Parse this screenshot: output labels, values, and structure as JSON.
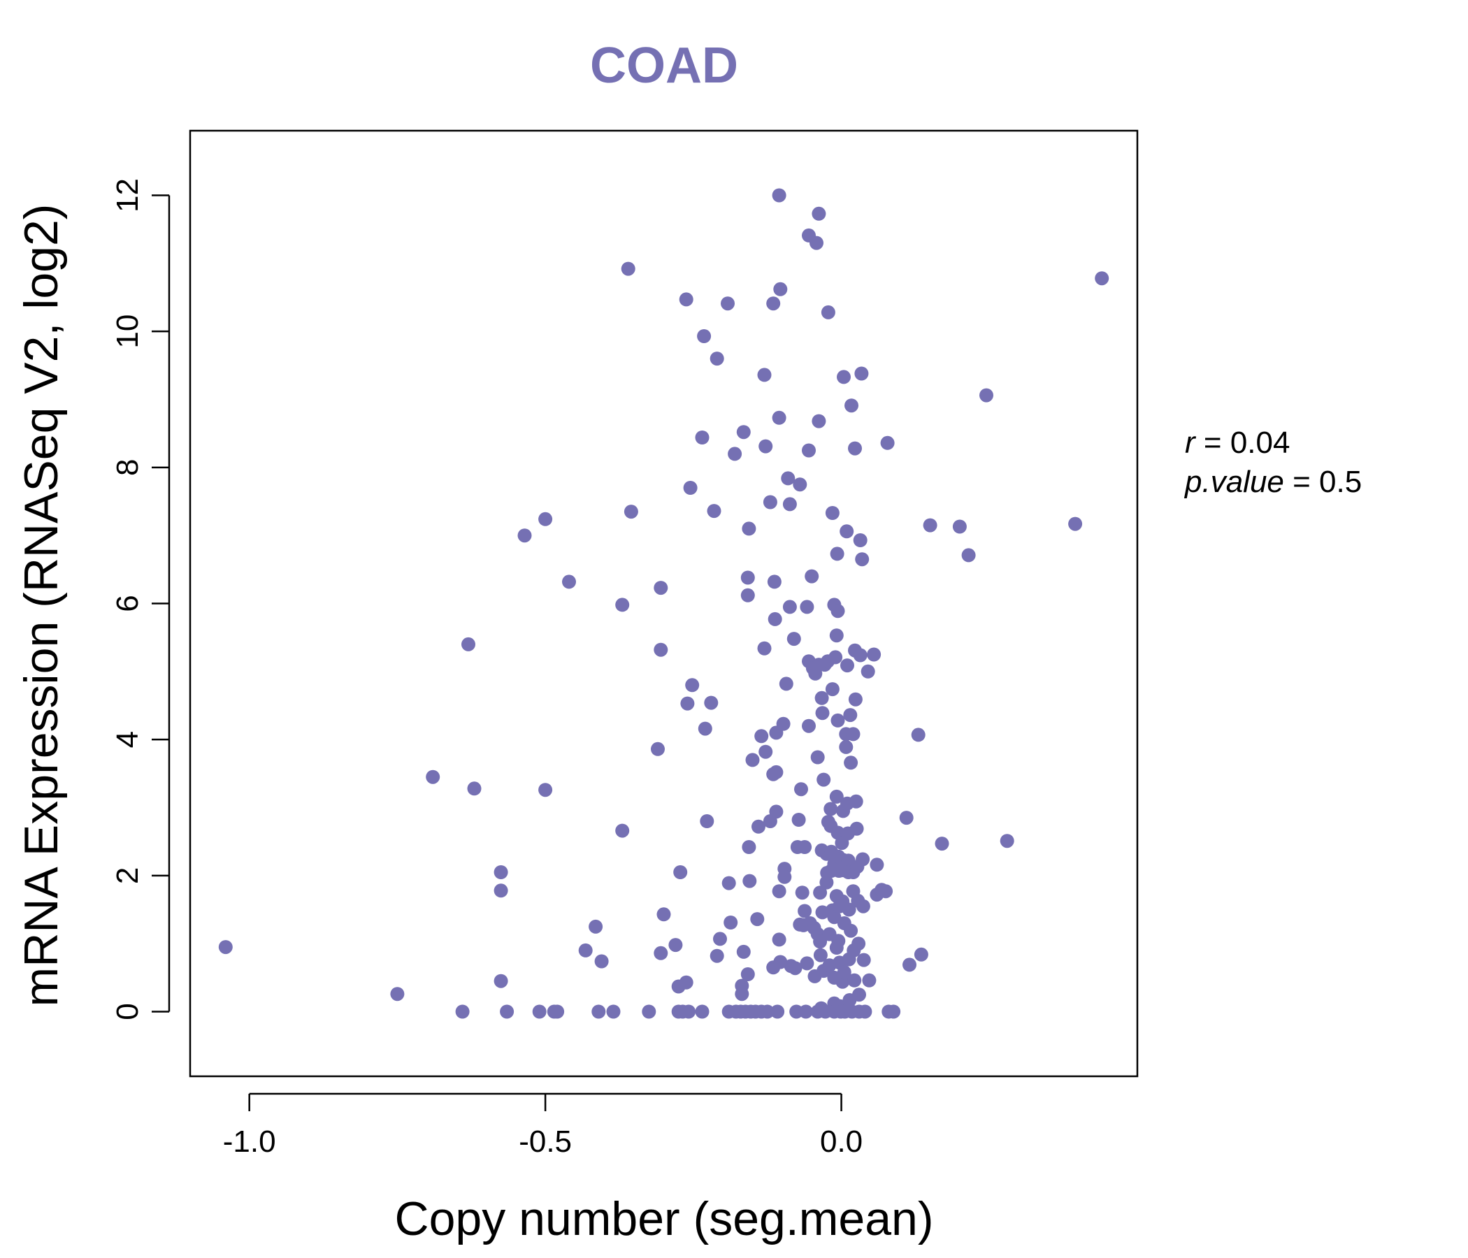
{
  "chart_data": {
    "type": "scatter",
    "title": "COAD",
    "xlabel": "Copy number (seg.mean)",
    "ylabel": "mRNA Expression (RNASeq V2, log2)",
    "xlim": [
      -1.1,
      0.5
    ],
    "ylim": [
      -0.95,
      12.95
    ],
    "x_ticks": [
      -1.0,
      -0.5,
      0.0
    ],
    "x_tick_labels": [
      "-1.0",
      "-0.5",
      "0.0"
    ],
    "y_ticks": [
      0,
      2,
      4,
      6,
      8,
      10,
      12
    ],
    "y_tick_labels": [
      "0",
      "2",
      "4",
      "6",
      "8",
      "10",
      "12"
    ],
    "point_color": "#7570b3",
    "annotations": {
      "r_label": "r",
      "r_value": "0.04",
      "p_label": "p.value",
      "p_value": "0.5"
    },
    "series": [
      {
        "name": "samples",
        "points": [
          [
            -1.04,
            0.95
          ],
          [
            -0.75,
            0.26
          ],
          [
            -0.69,
            3.45
          ],
          [
            -0.64,
            0.0
          ],
          [
            -0.63,
            5.4
          ],
          [
            -0.62,
            3.28
          ],
          [
            -0.575,
            2.05
          ],
          [
            -0.575,
            1.78
          ],
          [
            -0.575,
            0.45
          ],
          [
            -0.565,
            0.0
          ],
          [
            -0.535,
            7.0
          ],
          [
            -0.51,
            0.0
          ],
          [
            -0.5,
            7.24
          ],
          [
            -0.5,
            3.26
          ],
          [
            -0.485,
            0.0
          ],
          [
            -0.48,
            0.0
          ],
          [
            -0.46,
            6.32
          ],
          [
            -0.432,
            0.9
          ],
          [
            -0.415,
            1.25
          ],
          [
            -0.41,
            0.0
          ],
          [
            -0.405,
            0.74
          ],
          [
            -0.385,
            0.0
          ],
          [
            -0.37,
            5.98
          ],
          [
            -0.37,
            2.66
          ],
          [
            -0.36,
            10.92
          ],
          [
            -0.355,
            7.35
          ],
          [
            -0.325,
            0.0
          ],
          [
            -0.31,
            3.86
          ],
          [
            -0.305,
            6.23
          ],
          [
            -0.305,
            5.32
          ],
          [
            -0.305,
            0.86
          ],
          [
            -0.3,
            1.43
          ],
          [
            -0.28,
            0.98
          ],
          [
            -0.275,
            0.37
          ],
          [
            -0.275,
            0.0
          ],
          [
            -0.272,
            2.05
          ],
          [
            -0.268,
            0.0
          ],
          [
            -0.262,
            10.47
          ],
          [
            -0.262,
            0.43
          ],
          [
            -0.26,
            4.53
          ],
          [
            -0.258,
            0.0
          ],
          [
            -0.255,
            7.7
          ],
          [
            -0.252,
            4.8
          ],
          [
            -0.235,
            8.44
          ],
          [
            -0.235,
            0.0
          ],
          [
            -0.232,
            9.93
          ],
          [
            -0.23,
            4.16
          ],
          [
            -0.227,
            2.8
          ],
          [
            -0.22,
            4.54
          ],
          [
            -0.215,
            7.36
          ],
          [
            -0.21,
            9.6
          ],
          [
            -0.21,
            0.82
          ],
          [
            -0.205,
            1.07
          ],
          [
            -0.192,
            10.41
          ],
          [
            -0.19,
            1.89
          ],
          [
            -0.19,
            0.0
          ],
          [
            -0.187,
            1.31
          ],
          [
            -0.18,
            8.2
          ],
          [
            -0.178,
            0.0
          ],
          [
            -0.17,
            0.0
          ],
          [
            -0.168,
            0.38
          ],
          [
            -0.168,
            0.26
          ],
          [
            -0.165,
            8.52
          ],
          [
            -0.165,
            0.88
          ],
          [
            -0.162,
            0.0
          ],
          [
            -0.158,
            6.38
          ],
          [
            -0.158,
            6.12
          ],
          [
            -0.158,
            0.55
          ],
          [
            -0.156,
            7.1
          ],
          [
            -0.156,
            2.42
          ],
          [
            -0.155,
            1.92
          ],
          [
            -0.153,
            0.0
          ],
          [
            -0.15,
            3.7
          ],
          [
            -0.145,
            0.0
          ],
          [
            -0.142,
            1.36
          ],
          [
            -0.14,
            2.72
          ],
          [
            -0.135,
            4.05
          ],
          [
            -0.135,
            0.0
          ],
          [
            -0.13,
            9.36
          ],
          [
            -0.13,
            5.34
          ],
          [
            -0.128,
            8.31
          ],
          [
            -0.128,
            3.82
          ],
          [
            -0.125,
            0.0
          ],
          [
            -0.12,
            7.49
          ],
          [
            -0.12,
            2.8
          ],
          [
            -0.115,
            10.41
          ],
          [
            -0.115,
            3.49
          ],
          [
            -0.115,
            0.65
          ],
          [
            -0.113,
            6.32
          ],
          [
            -0.112,
            5.77
          ],
          [
            -0.11,
            4.1
          ],
          [
            -0.11,
            3.52
          ],
          [
            -0.11,
            2.94
          ],
          [
            -0.108,
            0.0
          ],
          [
            -0.105,
            12.0
          ],
          [
            -0.105,
            8.73
          ],
          [
            -0.105,
            1.77
          ],
          [
            -0.105,
            1.06
          ],
          [
            -0.103,
            10.62
          ],
          [
            -0.103,
            0.73
          ],
          [
            -0.098,
            4.23
          ],
          [
            -0.096,
            2.1
          ],
          [
            -0.096,
            1.98
          ],
          [
            -0.093,
            4.82
          ],
          [
            -0.09,
            7.84
          ],
          [
            -0.087,
            7.46
          ],
          [
            -0.087,
            5.95
          ],
          [
            -0.085,
            0.67
          ],
          [
            -0.08,
            5.48
          ],
          [
            -0.078,
            0.64
          ],
          [
            -0.076,
            0.0
          ],
          [
            -0.074,
            2.42
          ],
          [
            -0.072,
            2.82
          ],
          [
            -0.07,
            7.75
          ],
          [
            -0.07,
            1.28
          ],
          [
            -0.068,
            3.27
          ],
          [
            -0.066,
            1.75
          ],
          [
            -0.064,
            1.27
          ],
          [
            -0.062,
            2.42
          ],
          [
            -0.062,
            1.48
          ],
          [
            -0.06,
            0.0
          ],
          [
            -0.058,
            5.95
          ],
          [
            -0.058,
            0.71
          ],
          [
            -0.055,
            11.41
          ],
          [
            -0.055,
            8.25
          ],
          [
            -0.055,
            5.15
          ],
          [
            -0.055,
            4.2
          ],
          [
            -0.053,
            1.3
          ],
          [
            -0.05,
            6.4
          ],
          [
            -0.048,
            5.05
          ],
          [
            -0.046,
            1.23
          ],
          [
            -0.045,
            0.52
          ],
          [
            -0.044,
            4.97
          ],
          [
            -0.042,
            11.3
          ],
          [
            -0.04,
            3.74
          ],
          [
            -0.04,
            0.0
          ],
          [
            -0.04,
            1.14
          ],
          [
            -0.038,
            11.73
          ],
          [
            -0.038,
            8.68
          ],
          [
            -0.038,
            5.1
          ],
          [
            -0.036,
            1.75
          ],
          [
            -0.036,
            1.03
          ],
          [
            -0.035,
            0.83
          ],
          [
            -0.034,
            0.05
          ],
          [
            -0.033,
            4.61
          ],
          [
            -0.033,
            2.37
          ],
          [
            -0.032,
            4.39
          ],
          [
            -0.032,
            1.46
          ],
          [
            -0.03,
            3.41
          ],
          [
            -0.03,
            0.6
          ],
          [
            -0.028,
            5.1
          ],
          [
            -0.027,
            0.0
          ],
          [
            -0.025,
            2.32
          ],
          [
            -0.025,
            1.9
          ],
          [
            -0.024,
            2.04
          ],
          [
            -0.023,
            5.15
          ],
          [
            -0.022,
            10.28
          ],
          [
            -0.022,
            2.79
          ],
          [
            -0.02,
            1.14
          ],
          [
            -0.02,
            0.68
          ],
          [
            -0.018,
            2.98
          ],
          [
            -0.018,
            2.73
          ],
          [
            -0.017,
            2.35
          ],
          [
            -0.017,
            2.07
          ],
          [
            -0.015,
            7.33
          ],
          [
            -0.015,
            4.74
          ],
          [
            -0.015,
            1.49
          ],
          [
            -0.012,
            5.98
          ],
          [
            -0.012,
            2.17
          ],
          [
            -0.012,
            1.39
          ],
          [
            -0.012,
            0.5
          ],
          [
            -0.012,
            0.12
          ],
          [
            -0.012,
            0.0
          ],
          [
            -0.01,
            5.21
          ],
          [
            -0.008,
            5.53
          ],
          [
            -0.008,
            3.16
          ],
          [
            -0.008,
            1.7
          ],
          [
            -0.008,
            0.94
          ],
          [
            -0.007,
            6.73
          ],
          [
            -0.006,
            5.89
          ],
          [
            -0.006,
            4.28
          ],
          [
            -0.006,
            2.63
          ],
          [
            -0.005,
            2.28
          ],
          [
            -0.005,
            1.04
          ],
          [
            -0.004,
            2.07
          ],
          [
            -0.003,
            1.55
          ],
          [
            -0.003,
            0.72
          ],
          [
            -0.002,
            0.08
          ],
          [
            -0.001,
            0.0
          ],
          [
            0.001,
            2.48
          ],
          [
            0.002,
            1.62
          ],
          [
            0.002,
            0.44
          ],
          [
            0.003,
            2.95
          ],
          [
            0.003,
            2.23
          ],
          [
            0.003,
            2.08
          ],
          [
            0.004,
            9.33
          ],
          [
            0.005,
            1.3
          ],
          [
            0.005,
            0.58
          ],
          [
            0.006,
            0.0
          ],
          [
            0.008,
            4.08
          ],
          [
            0.008,
            3.89
          ],
          [
            0.009,
            7.06
          ],
          [
            0.01,
            5.09
          ],
          [
            0.01,
            3.06
          ],
          [
            0.011,
            2.62
          ],
          [
            0.012,
            2.22
          ],
          [
            0.012,
            2.05
          ],
          [
            0.013,
            1.5
          ],
          [
            0.013,
            0.77
          ],
          [
            0.014,
            0.17
          ],
          [
            0.015,
            4.36
          ],
          [
            0.016,
            3.66
          ],
          [
            0.016,
            1.19
          ],
          [
            0.017,
            8.91
          ],
          [
            0.018,
            0.0
          ],
          [
            0.02,
            4.08
          ],
          [
            0.02,
            2.05
          ],
          [
            0.02,
            1.77
          ],
          [
            0.021,
            0.9
          ],
          [
            0.022,
            0.46
          ],
          [
            0.023,
            8.28
          ],
          [
            0.023,
            5.31
          ],
          [
            0.024,
            4.59
          ],
          [
            0.025,
            3.09
          ],
          [
            0.026,
            2.69
          ],
          [
            0.027,
            2.13
          ],
          [
            0.028,
            1.63
          ],
          [
            0.029,
            1.0
          ],
          [
            0.03,
            0.25
          ],
          [
            0.03,
            0.0
          ],
          [
            0.032,
            6.93
          ],
          [
            0.032,
            5.24
          ],
          [
            0.034,
            9.38
          ],
          [
            0.035,
            6.65
          ],
          [
            0.036,
            2.24
          ],
          [
            0.037,
            1.55
          ],
          [
            0.038,
            0.76
          ],
          [
            0.04,
            0.0
          ],
          [
            0.045,
            5.0
          ],
          [
            0.047,
            0.46
          ],
          [
            0.055,
            5.25
          ],
          [
            0.06,
            2.16
          ],
          [
            0.06,
            1.72
          ],
          [
            0.068,
            1.79
          ],
          [
            0.075,
            1.77
          ],
          [
            0.078,
            8.36
          ],
          [
            0.08,
            0.0
          ],
          [
            0.088,
            0.0
          ],
          [
            0.11,
            2.85
          ],
          [
            0.115,
            0.69
          ],
          [
            0.13,
            4.07
          ],
          [
            0.135,
            0.84
          ],
          [
            0.15,
            7.15
          ],
          [
            0.17,
            2.47
          ],
          [
            0.2,
            7.13
          ],
          [
            0.215,
            6.71
          ],
          [
            0.245,
            9.06
          ],
          [
            0.28,
            2.51
          ],
          [
            0.395,
            7.17
          ],
          [
            0.44,
            10.78
          ]
        ]
      }
    ]
  }
}
